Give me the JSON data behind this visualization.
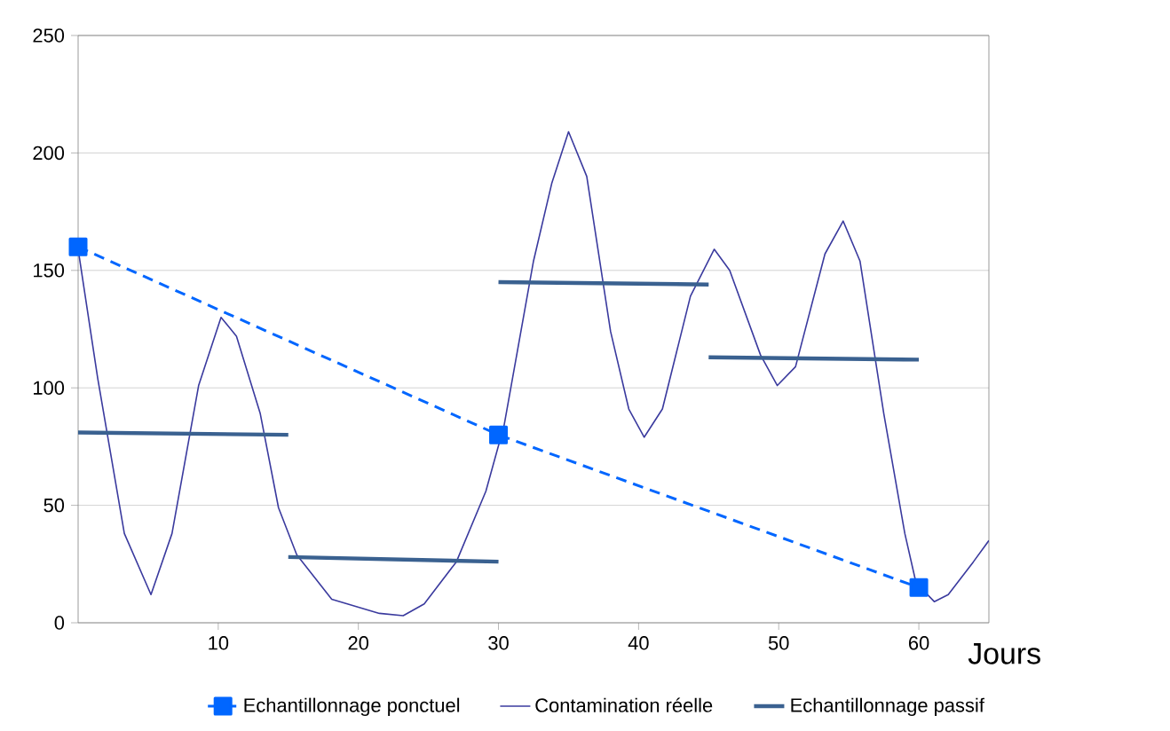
{
  "chart_data": {
    "type": "line",
    "xlabel": "Jours",
    "xlim": [
      0,
      65
    ],
    "ylim": [
      0,
      250
    ],
    "xticks": [
      10,
      20,
      30,
      40,
      50,
      60
    ],
    "yticks": [
      0,
      50,
      100,
      150,
      200,
      250
    ],
    "grid": "y",
    "legend": "bottom",
    "series": [
      {
        "name": "Echantillonnage ponctuel",
        "color": "#0066ff",
        "marker": "square",
        "line_style": "dashed",
        "x": [
          0,
          30,
          60
        ],
        "values": [
          160,
          80,
          15
        ]
      },
      {
        "name": "Contamination réelle",
        "color": "#3a3a9e",
        "x": [
          0,
          1.4,
          3.3,
          5.2,
          6.7,
          8.6,
          10.2,
          11.3,
          13,
          14.3,
          15.6,
          18.1,
          21.5,
          23.2,
          24.7,
          27,
          29.1,
          30.4,
          32.5,
          33.8,
          35,
          36.3,
          38,
          39.3,
          40.4,
          41.7,
          43.7,
          45.4,
          46.5,
          48.7,
          49.9,
          51.2,
          53.3,
          54.6,
          55.8,
          57.5,
          59,
          59.8,
          61.1,
          62.1,
          63.9,
          65
        ],
        "values": [
          159,
          104,
          38,
          12,
          38,
          101,
          130,
          122,
          89,
          49,
          29,
          10,
          4,
          3,
          8,
          26,
          56,
          84,
          154,
          187,
          209,
          190,
          124,
          91,
          79,
          91,
          139,
          159,
          150,
          114,
          101,
          109,
          157,
          171,
          154,
          89,
          38,
          17,
          9,
          12,
          26,
          35
        ]
      },
      {
        "name": "Echantillonnage passif",
        "color": "#3a6190",
        "x": [
          0,
          15
        ],
        "values": [
          81,
          80
        ]
      },
      {
        "color": "#3a6190",
        "x": [
          15,
          30
        ],
        "values": [
          28,
          26
        ]
      },
      {
        "color": "#3a6190",
        "x": [
          30,
          45
        ],
        "values": [
          145,
          144
        ]
      },
      {
        "color": "#3a6190",
        "x": [
          45,
          60
        ],
        "values": [
          113,
          112
        ]
      }
    ]
  }
}
